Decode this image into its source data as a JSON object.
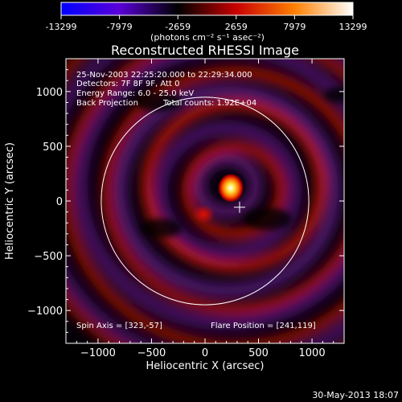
{
  "colorbar": {
    "ticks": [
      "-13299",
      "-7979",
      "-2659",
      "2659",
      "7979",
      "13299"
    ],
    "min": -13299,
    "max": 13299,
    "unit_label": "(photons cm⁻² s⁻¹ asec⁻²)",
    "colors": [
      "#0000ff",
      "#5a00d8",
      "#000000",
      "#c80000",
      "#ff8000",
      "#ffffff"
    ]
  },
  "chart_data": {
    "type": "heatmap",
    "title": "Reconstructed RHESSI Image",
    "xlabel": "Heliocentric X (arcsec)",
    "ylabel": "Heliocentric Y (arcsec)",
    "xlim": [
      -1300,
      1300
    ],
    "ylim": [
      -1300,
      1300
    ],
    "x_ticks": [
      -1000,
      -500,
      0,
      500,
      1000
    ],
    "y_ticks": [
      -1000,
      -500,
      0,
      500,
      1000
    ],
    "x_tick_labels": [
      "−1000",
      "−500",
      "0",
      "500",
      "1000"
    ],
    "y_tick_labels": [
      "−1000",
      "−500",
      "0",
      "500",
      "1000"
    ],
    "annotations": {
      "time": "25-Nov-2003 22:25:20.000 to 22:29:34.000",
      "detectors": "Detectors: 7F 8F 9F, Att 0",
      "energy": "Energy Range: 6.0 - 25.0 keV",
      "method": "Back Projection",
      "counts": "Total counts: 1.92E+04",
      "spin_axis": "Spin Axis = [323,-57]",
      "flare_position": "Flare Position = [241,119]"
    },
    "solar_limb": {
      "center": [
        0,
        0
      ],
      "radius": 970
    },
    "spin_axis_marker": [
      323,
      -57
    ],
    "flare_source": {
      "center": [
        241,
        119
      ],
      "peak": 13299
    }
  },
  "footer_date": "30-May-2013 18:07"
}
